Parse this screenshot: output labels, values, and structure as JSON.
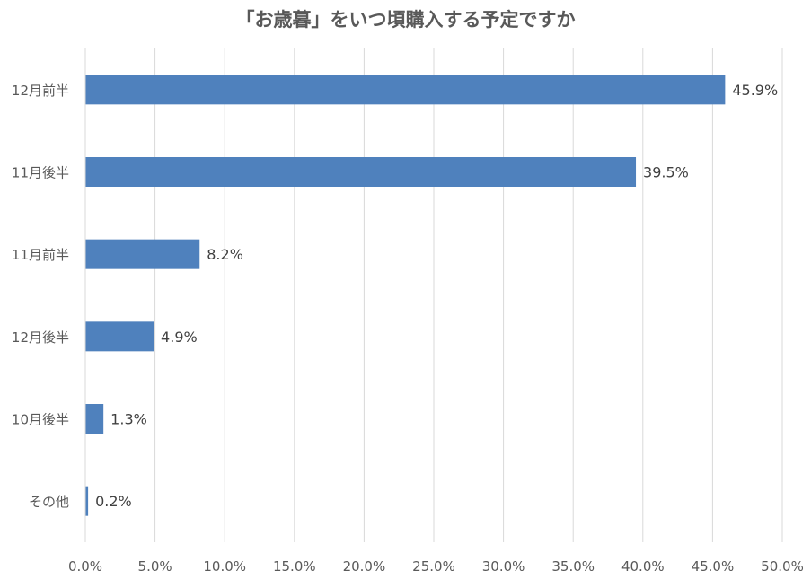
{
  "chart_data": {
    "type": "bar",
    "orientation": "horizontal",
    "title": "「お歳暮」をいつ頃購入する予定ですか",
    "categories": [
      "12月前半",
      "11月後半",
      "11月前半",
      "12月後半",
      "10月後半",
      "その他"
    ],
    "values": [
      45.9,
      39.5,
      8.2,
      4.9,
      1.3,
      0.2
    ],
    "data_labels": [
      "45.9%",
      "39.5%",
      "8.2%",
      "4.9%",
      "1.3%",
      "0.2%"
    ],
    "xlim": [
      0,
      50
    ],
    "x_ticks": [
      0,
      5,
      10,
      15,
      20,
      25,
      30,
      35,
      40,
      45,
      50
    ],
    "x_tick_labels": [
      "0.0%",
      "5.0%",
      "10.0%",
      "15.0%",
      "20.0%",
      "25.0%",
      "30.0%",
      "35.0%",
      "40.0%",
      "45.0%",
      "50.0%"
    ],
    "xlabel": "",
    "ylabel": "",
    "grid": "vertical",
    "legend": "none",
    "bar_color": "#4F81BD",
    "grid_color": "#D9D9D9"
  }
}
